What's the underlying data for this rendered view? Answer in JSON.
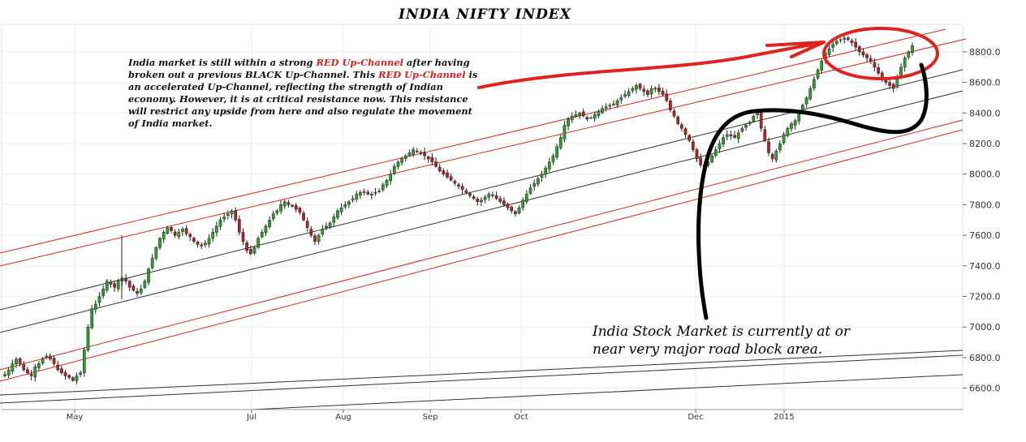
{
  "chart_data": {
    "type": "candlestick",
    "title": "INDIA NIFTY INDEX",
    "ylim": [
      6460,
      8980
    ],
    "y_ticks": [
      "6600.0",
      "6800.0",
      "7000.0",
      "7200.0",
      "7400.0",
      "7600.0",
      "7800.0",
      "8000.0",
      "8200.0",
      "8400.0",
      "8600.0",
      "8800.0"
    ],
    "x_ticks": [
      "May",
      "Jul",
      "Aug",
      "Sep",
      "Oct",
      "Dec",
      "2015"
    ],
    "grid": true,
    "y_axis_position": "right",
    "candle_colors": {
      "up": "#2ca02c",
      "down": "#b22222"
    },
    "closes": [
      6690,
      6720,
      6760,
      6790,
      6760,
      6720,
      6700,
      6680,
      6740,
      6760,
      6790,
      6810,
      6790,
      6760,
      6720,
      6700,
      6680,
      6670,
      6650,
      6680,
      6700,
      6850,
      7000,
      7120,
      7150,
      7200,
      7250,
      7300,
      7280,
      7260,
      7300,
      7320,
      7300,
      7260,
      7240,
      7220,
      7250,
      7300,
      7380,
      7450,
      7520,
      7580,
      7620,
      7650,
      7630,
      7600,
      7620,
      7640,
      7610,
      7590,
      7560,
      7540,
      7530,
      7550,
      7580,
      7620,
      7660,
      7700,
      7720,
      7740,
      7760,
      7700,
      7620,
      7560,
      7500,
      7480,
      7520,
      7580,
      7620,
      7660,
      7700,
      7740,
      7760,
      7800,
      7820,
      7800,
      7790,
      7770,
      7750,
      7700,
      7650,
      7600,
      7560,
      7600,
      7640,
      7660,
      7680,
      7720,
      7760,
      7780,
      7800,
      7820,
      7840,
      7870,
      7880,
      7880,
      7870,
      7870,
      7880,
      7890,
      7930,
      7960,
      8000,
      8050,
      8080,
      8100,
      8120,
      8140,
      8160,
      8150,
      8140,
      8120,
      8100,
      8080,
      8050,
      8020,
      8000,
      7980,
      7960,
      7940,
      7920,
      7900,
      7880,
      7860,
      7840,
      7820,
      7830,
      7850,
      7870,
      7860,
      7840,
      7820,
      7800,
      7780,
      7760,
      7740,
      7780,
      7830,
      7870,
      7910,
      7940,
      7970,
      8000,
      8040,
      8080,
      8120,
      8180,
      8240,
      8320,
      8360,
      8380,
      8390,
      8400,
      8380,
      8360,
      8370,
      8390,
      8410,
      8430,
      8440,
      8450,
      8460,
      8480,
      8500,
      8520,
      8540,
      8560,
      8580,
      8560,
      8540,
      8520,
      8560,
      8560,
      8540,
      8520,
      8480,
      8420,
      8380,
      8330,
      8300,
      8260,
      8220,
      8160,
      8100,
      8060,
      8050,
      8080,
      8120,
      8160,
      8200,
      8240,
      8260,
      8250,
      8240,
      8270,
      8300,
      8320,
      8340,
      8380,
      8400,
      8300,
      8220,
      8140,
      8100,
      8150,
      8200,
      8260,
      8300,
      8330,
      8350,
      8400,
      8450,
      8500,
      8560,
      8620,
      8680,
      8740,
      8790,
      8820,
      8850,
      8870,
      8880,
      8890,
      8880,
      8860,
      8830,
      8800,
      8780,
      8760,
      8740,
      8700,
      8660,
      8620,
      8600,
      8580,
      8560,
      8640,
      8700,
      8760,
      8800,
      8840
    ],
    "annotations": [
      {
        "text": "India market is still within a strong RED Up-Channel after having broken out a previous BLACK Up-Channel. This RED Up-Channel is an accelerated Up-Channel, reflecting the strength of Indian economy. However, it is at critical resistance now. This resistance will restrict any upside from here and also regulate the movement of India market."
      },
      {
        "text": "India Stock Market is currently at or near very major road block area."
      }
    ]
  },
  "note": {
    "part1": "India market is still within a strong ",
    "red1": "RED Up-Channel",
    "part2": " after having broken out a previous BLACK Up-Channel. This ",
    "red2": "RED Up-Channel",
    "part3": " is an accelerated Up-Channel, reflecting the strength of Indian economy. However, it is at critical resistance now. This resistance will restrict any upside from here and also regulate the movement of India market."
  },
  "callout": {
    "line1": "India Stock Market is currently at or",
    "line2": "near very major road block area."
  },
  "colors": {
    "channel_red": "#e0241d",
    "channel_black": "#333333",
    "grid": "#e6e6e6",
    "markup": "#e0241d"
  }
}
